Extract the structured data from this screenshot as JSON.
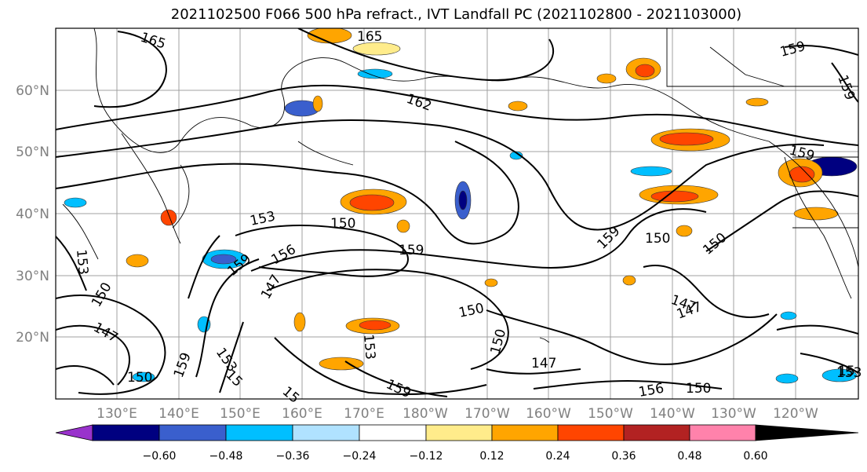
{
  "title": "2021102500 F066 500 hPa refract., IVT Landfall PC (2021102800 - 2021103000)",
  "lat_labels": [
    "60°N",
    "50°N",
    "40°N",
    "30°N",
    "20°N"
  ],
  "lon_labels": [
    "130°E",
    "140°E",
    "150°E",
    "160°E",
    "170°E",
    "180°W",
    "170°W",
    "160°W",
    "150°W",
    "140°W",
    "130°W",
    "120°W"
  ],
  "colorbar": {
    "ticks": [
      "−0.60",
      "−0.48",
      "−0.36",
      "−0.24",
      "−0.12",
      "0.12",
      "0.24",
      "0.36",
      "0.48",
      "0.60"
    ],
    "colors": [
      "#9932cc",
      "#000080",
      "#3a5fcd",
      "#00bfff",
      "#b0e2ff",
      "#ffffff",
      "#ffec8b",
      "#ffa500",
      "#ff4500",
      "#b22222",
      "#ff82ab"
    ]
  },
  "contour_labels": [
    "165",
    "165",
    "162",
    "159",
    "159",
    "159",
    "159",
    "159",
    "159",
    "159",
    "153",
    "153",
    "153",
    "153",
    "153",
    "150",
    "150",
    "150",
    "150",
    "150",
    "150",
    "150",
    "150",
    "147",
    "147",
    "147",
    "147",
    "147",
    "156",
    "156",
    "159",
    "15",
    "15",
    "15"
  ]
}
